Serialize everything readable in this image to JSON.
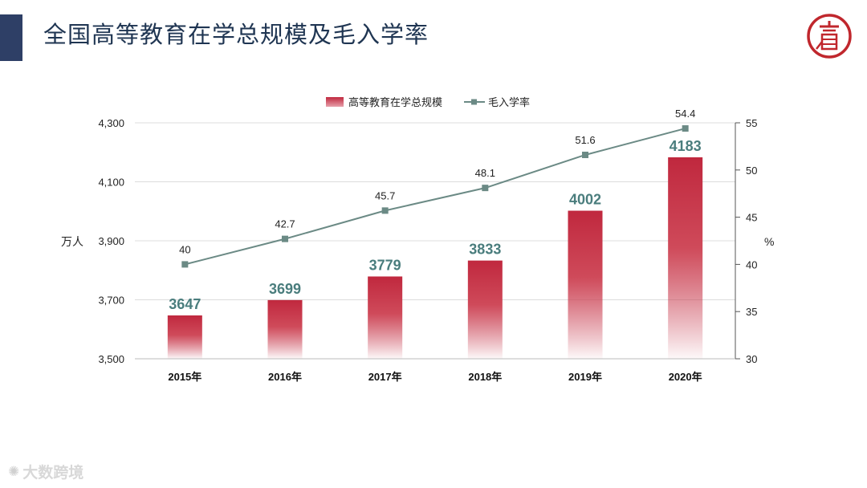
{
  "header": {
    "title": "全国高等教育在学总规模及毛入学率",
    "accent_color": "#2e3f66",
    "logo_icon": "seal-logo-icon",
    "logo_color": "#c0272d"
  },
  "watermark": {
    "text": "大数跨境",
    "icon": "watermark-logo-icon"
  },
  "chart_data": {
    "type": "bar+line",
    "categories": [
      "2015年",
      "2016年",
      "2017年",
      "2018年",
      "2019年",
      "2020年"
    ],
    "series": [
      {
        "name": "高等教育在学总规模",
        "kind": "bar",
        "axis": "left",
        "values": [
          3647,
          3699,
          3779,
          3833,
          4002,
          4183
        ],
        "labels": [
          "3647",
          "3699",
          "3779",
          "3833",
          "4002",
          "4183"
        ],
        "color": "#c0283e"
      },
      {
        "name": "毛入学率",
        "kind": "line",
        "axis": "right",
        "values": [
          40,
          42.7,
          45.7,
          48.1,
          51.6,
          54.4
        ],
        "labels": [
          "40",
          "42.7",
          "45.7",
          "48.1",
          "51.6",
          "54.4"
        ],
        "color": "#6b8a85"
      }
    ],
    "left_axis": {
      "label": "万人",
      "range": [
        3500,
        4300
      ],
      "ticks": [
        3500,
        3700,
        3900,
        4100,
        4300
      ],
      "tick_labels": [
        "3,500",
        "3,700",
        "3,900",
        "4,100",
        "4,300"
      ]
    },
    "right_axis": {
      "label": "%",
      "range": [
        30,
        55
      ],
      "ticks": [
        30,
        35,
        40,
        45,
        50,
        55
      ],
      "tick_labels": [
        "30",
        "35",
        "40",
        "45",
        "50",
        "55"
      ]
    },
    "legend": {
      "position": "top-center",
      "bar_label": "高等教育在学总规模",
      "line_label": "毛入学率"
    }
  }
}
